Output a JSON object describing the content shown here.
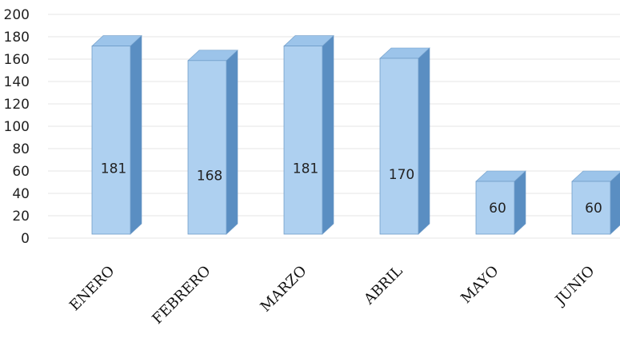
{
  "chart_data": {
    "type": "bar",
    "style": "3d-column",
    "categories": [
      "ENERO",
      "FEBRERO",
      "MARZO",
      "ABRIL",
      "MAYO",
      "JUNIO"
    ],
    "values": [
      181,
      168,
      181,
      170,
      60,
      60
    ],
    "data_labels": [
      "181",
      "168",
      "181",
      "170",
      "60",
      "60"
    ],
    "y_ticks": [
      "0",
      "20",
      "40",
      "60",
      "80",
      "100",
      "120",
      "140",
      "160",
      "180",
      "200"
    ],
    "ylim": [
      0,
      200
    ],
    "grid": true,
    "legend": "none",
    "colors": {
      "bar_front": "#aed0f0",
      "bar_top": "#9cc4ea",
      "bar_side": "#5a8ec2",
      "bar_edge": "#6f9cc8"
    }
  }
}
